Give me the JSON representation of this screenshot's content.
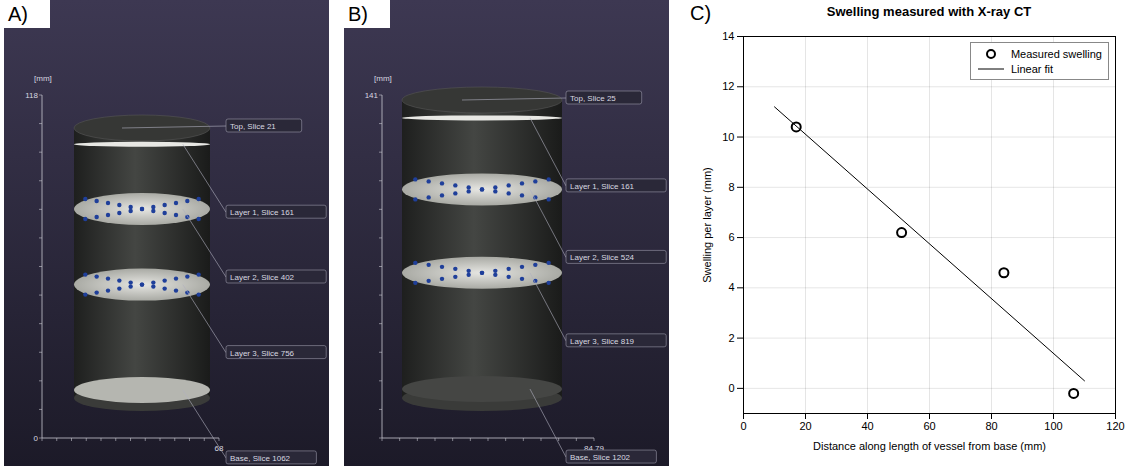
{
  "renderings": [
    {
      "letter": "A)",
      "unit": "[mm]",
      "height_label": 118,
      "origin_label": 0,
      "width_label": 68,
      "slices": [
        "Top, Slice 21",
        "Layer 1, Slice 161",
        "Layer 2, Slice 402",
        "Layer 3, Slice 756",
        "Base, Slice 1062"
      ]
    },
    {
      "letter": "B)",
      "unit": "[mm]",
      "height_label": 141,
      "width_label": 84.79,
      "slices": [
        "Top, Slice 25",
        "Layer 1, Slice 161",
        "Layer 2, Slice 524",
        "Layer 3, Slice 819",
        "Base, Slice 1202"
      ]
    }
  ],
  "chart_data": {
    "letter": "C)",
    "type": "scatter",
    "title": "Swelling measured with X-ray CT",
    "x_label": "Distance along length of vessel from base (mm)",
    "y_label": "Swelling per layer (mm)",
    "xlim": [
      0,
      120
    ],
    "xticks": [
      0,
      20,
      40,
      60,
      80,
      100,
      120
    ],
    "ylim": [
      -1,
      14
    ],
    "yticks": [
      0,
      2,
      4,
      6,
      8,
      10,
      12,
      14
    ],
    "grid": true,
    "legend": "top-right",
    "series": [
      {
        "name": "Measured swelling",
        "type": "scatter",
        "marker": "circle",
        "color": "#000000",
        "x": [
          17,
          51,
          84,
          106.5
        ],
        "values": [
          10.4,
          6.2,
          4.6,
          -0.2
        ]
      },
      {
        "name": "Linear fit",
        "type": "line",
        "line_style": "solid",
        "color": "#000000",
        "x": [
          10,
          110
        ],
        "values": [
          11.2,
          0.3
        ]
      }
    ]
  }
}
